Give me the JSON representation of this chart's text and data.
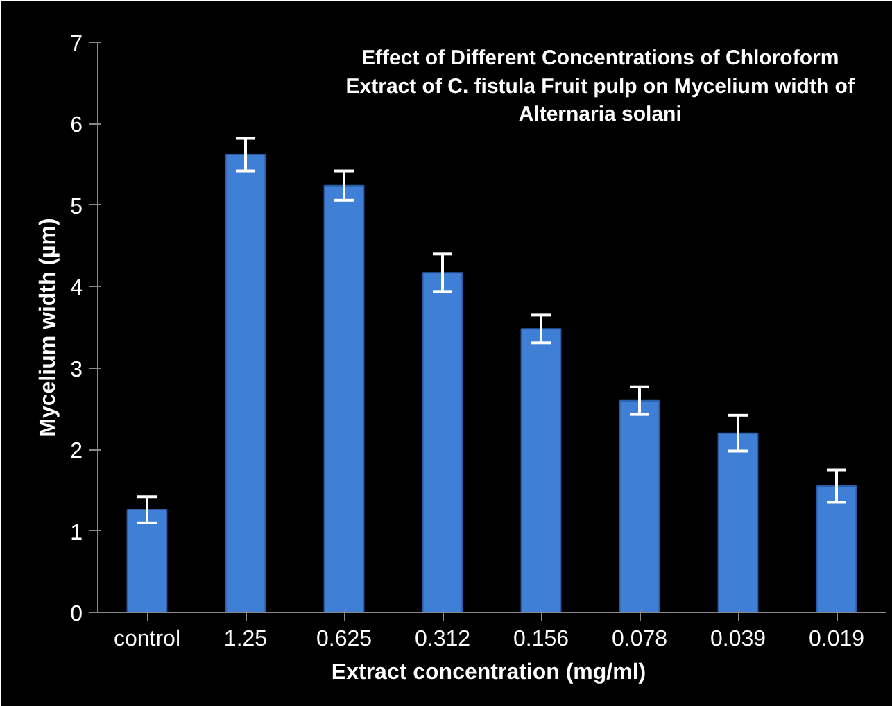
{
  "chart_data": {
    "type": "bar",
    "title": "Effect of Different Concentrations of Chloroform Extract of C. fistula Fruit pulp on Mycelium width of Alternaria solani",
    "xlabel": "Extract  concentration (mg/ml)",
    "ylabel": "Mycelium width (µm)",
    "categories": [
      "control",
      "1.25",
      "0.625",
      "0.312",
      "0.156",
      "0.078",
      "0.039",
      "0.019"
    ],
    "values": [
      1.26,
      5.62,
      5.24,
      4.17,
      3.48,
      2.6,
      2.2,
      1.55
    ],
    "errors": [
      0.16,
      0.2,
      0.18,
      0.23,
      0.17,
      0.17,
      0.22,
      0.2
    ],
    "color": "#3f7fd6",
    "ylim": [
      0,
      7
    ],
    "yticks": [
      0,
      1,
      2,
      3,
      4,
      5,
      6,
      7
    ],
    "grid": false
  }
}
